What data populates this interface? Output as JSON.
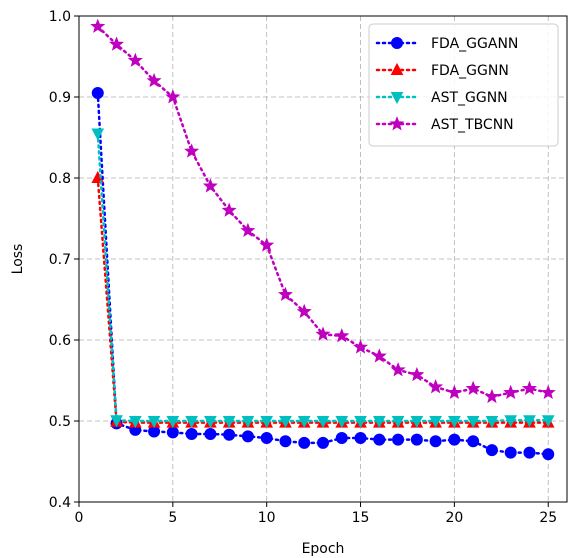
{
  "chart_data": {
    "type": "line",
    "title": "",
    "xlabel": "Epoch",
    "ylabel": "Loss",
    "xlim": [
      0,
      26
    ],
    "ylim": [
      0.4,
      1.0
    ],
    "xticks": [
      "0",
      "5",
      "10",
      "15",
      "20",
      "25"
    ],
    "yticks": [
      "0.4",
      "0.5",
      "0.6",
      "0.7",
      "0.8",
      "0.9",
      "1.0"
    ],
    "grid": true,
    "legend_position": "top-right",
    "x": [
      1,
      2,
      3,
      4,
      5,
      6,
      7,
      8,
      9,
      10,
      11,
      12,
      13,
      14,
      15,
      16,
      17,
      18,
      19,
      20,
      21,
      22,
      23,
      24,
      25
    ],
    "series": [
      {
        "name": "FDA_GGANN",
        "color": "#0000ff",
        "marker": "circle",
        "values": [
          0.905,
          0.497,
          0.489,
          0.487,
          0.486,
          0.484,
          0.484,
          0.483,
          0.481,
          0.479,
          0.475,
          0.473,
          0.473,
          0.479,
          0.479,
          0.477,
          0.477,
          0.477,
          0.475,
          0.477,
          0.475,
          0.464,
          0.461,
          0.461,
          0.459
        ]
      },
      {
        "name": "FDA_GGNN",
        "color": "#ff0000",
        "marker": "triangle-up",
        "values": [
          0.8,
          0.499,
          0.498,
          0.498,
          0.498,
          0.498,
          0.498,
          0.498,
          0.498,
          0.498,
          0.498,
          0.498,
          0.498,
          0.498,
          0.498,
          0.498,
          0.498,
          0.498,
          0.498,
          0.498,
          0.498,
          0.498,
          0.498,
          0.498,
          0.498
        ]
      },
      {
        "name": "AST_GGNN",
        "color": "#00bfbf",
        "marker": "triangle-down",
        "values": [
          0.855,
          0.501,
          0.5,
          0.5,
          0.5,
          0.5,
          0.5,
          0.5,
          0.5,
          0.5,
          0.5,
          0.5,
          0.5,
          0.5,
          0.5,
          0.5,
          0.5,
          0.5,
          0.5,
          0.5,
          0.5,
          0.5,
          0.501,
          0.501,
          0.501
        ]
      },
      {
        "name": "AST_TBCNN",
        "color": "#bf00bf",
        "marker": "star",
        "values": [
          0.987,
          0.965,
          0.945,
          0.92,
          0.9,
          0.833,
          0.79,
          0.76,
          0.735,
          0.717,
          0.656,
          0.635,
          0.607,
          0.605,
          0.591,
          0.58,
          0.563,
          0.557,
          0.542,
          0.535,
          0.54,
          0.53,
          0.535,
          0.54,
          0.535
        ]
      }
    ]
  }
}
